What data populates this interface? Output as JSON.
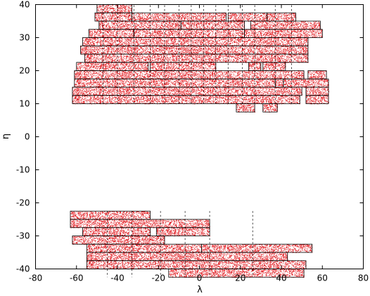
{
  "chart_data": {
    "type": "scatter",
    "title": "",
    "xlabel": "λ",
    "ylabel": "η",
    "xlim": [
      -80,
      80
    ],
    "ylim": [
      -40,
      40
    ],
    "xticks": [
      -80,
      -60,
      -40,
      -20,
      0,
      20,
      40,
      60,
      80
    ],
    "yticks": [
      -40,
      -30,
      -20,
      -10,
      0,
      10,
      20,
      30,
      40
    ],
    "grid": false,
    "point_color": "#e0141a",
    "density_note": "dense random point fill inside each stripe rectangle",
    "stripes": [
      {
        "x": [
          -50,
          -33
        ],
        "y": [
          37.5,
          40
        ]
      },
      {
        "x": [
          -51,
          -33
        ],
        "y": [
          35,
          37.5
        ]
      },
      {
        "x": [
          -33,
          13
        ],
        "y": [
          35,
          37.5
        ]
      },
      {
        "x": [
          14,
          33
        ],
        "y": [
          35,
          37.5
        ]
      },
      {
        "x": [
          33,
          47
        ],
        "y": [
          35,
          37.5
        ]
      },
      {
        "x": [
          -49,
          -9
        ],
        "y": [
          32.5,
          35
        ]
      },
      {
        "x": [
          -9,
          22
        ],
        "y": [
          32.5,
          35
        ]
      },
      {
        "x": [
          25,
          59
        ],
        "y": [
          32.5,
          35
        ]
      },
      {
        "x": [
          -54,
          -32
        ],
        "y": [
          30,
          32.5
        ]
      },
      {
        "x": [
          -32,
          22
        ],
        "y": [
          30,
          32.5
        ]
      },
      {
        "x": [
          22,
          60
        ],
        "y": [
          30,
          32.5
        ]
      },
      {
        "x": [
          -57,
          53
        ],
        "y": [
          27.5,
          30
        ]
      },
      {
        "x": [
          -58,
          53
        ],
        "y": [
          25,
          27.5
        ]
      },
      {
        "x": [
          -56,
          53
        ],
        "y": [
          22.5,
          25
        ]
      },
      {
        "x": [
          -60,
          -25
        ],
        "y": [
          20,
          22.5
        ]
      },
      {
        "x": [
          -24,
          8
        ],
        "y": [
          20,
          22.5
        ]
      },
      {
        "x": [
          24,
          30
        ],
        "y": [
          20,
          22.5
        ]
      },
      {
        "x": [
          31,
          42
        ],
        "y": [
          20,
          22.5
        ]
      },
      {
        "x": [
          -61,
          51
        ],
        "y": [
          17.5,
          20
        ]
      },
      {
        "x": [
          53,
          62
        ],
        "y": [
          17.5,
          20
        ]
      },
      {
        "x": [
          -61,
          37
        ],
        "y": [
          15,
          17.5
        ]
      },
      {
        "x": [
          37,
          41
        ],
        "y": [
          15,
          17.5
        ]
      },
      {
        "x": [
          41,
          63
        ],
        "y": [
          15,
          17.5
        ]
      },
      {
        "x": [
          -62,
          50
        ],
        "y": [
          12.5,
          15
        ]
      },
      {
        "x": [
          52,
          63
        ],
        "y": [
          12.5,
          15
        ]
      },
      {
        "x": [
          -62,
          49
        ],
        "y": [
          10,
          12.5
        ]
      },
      {
        "x": [
          52,
          63
        ],
        "y": [
          10,
          12.5
        ]
      },
      {
        "x": [
          18,
          27
        ],
        "y": [
          7.5,
          10
        ]
      },
      {
        "x": [
          31,
          38
        ],
        "y": [
          7.5,
          10
        ]
      },
      {
        "x": [
          -63,
          -24
        ],
        "y": [
          -25,
          -22.5
        ]
      },
      {
        "x": [
          -63,
          5
        ],
        "y": [
          -27.5,
          -25
        ]
      },
      {
        "x": [
          -57,
          -24
        ],
        "y": [
          -30,
          -27.5
        ]
      },
      {
        "x": [
          -21,
          5
        ],
        "y": [
          -30,
          -27.5
        ]
      },
      {
        "x": [
          -62,
          -17
        ],
        "y": [
          -32.5,
          -30
        ]
      },
      {
        "x": [
          -55,
          1
        ],
        "y": [
          -35,
          -32.5
        ]
      },
      {
        "x": [
          1,
          55
        ],
        "y": [
          -35,
          -32.5
        ]
      },
      {
        "x": [
          -55,
          43
        ],
        "y": [
          -37.5,
          -35
        ]
      },
      {
        "x": [
          -55,
          52
        ],
        "y": [
          -40,
          -37.5
        ]
      },
      {
        "x": [
          -15,
          51
        ],
        "y": [
          -42.5,
          -40
        ]
      }
    ],
    "dashed_lines": [
      {
        "x": -47,
        "y": [
          10,
          40
        ]
      },
      {
        "x": -40,
        "y": [
          10,
          40
        ]
      },
      {
        "x": -32,
        "y": [
          10,
          40
        ]
      },
      {
        "x": -24,
        "y": [
          10,
          40
        ]
      },
      {
        "x": -17,
        "y": [
          10,
          40
        ]
      },
      {
        "x": -10,
        "y": [
          10,
          40
        ]
      },
      {
        "x": -4,
        "y": [
          10,
          40
        ]
      },
      {
        "x": 2,
        "y": [
          10,
          40
        ]
      },
      {
        "x": 8,
        "y": [
          10,
          40
        ]
      },
      {
        "x": 14,
        "y": [
          10,
          40
        ]
      },
      {
        "x": 21,
        "y": [
          10,
          40
        ]
      },
      {
        "x": 27,
        "y": [
          10,
          40
        ]
      },
      {
        "x": 37,
        "y": [
          10,
          40
        ]
      },
      {
        "x": 45,
        "y": [
          10,
          40
        ]
      },
      {
        "x": -45,
        "y": [
          -22.5,
          -42.5
        ]
      },
      {
        "x": -33,
        "y": [
          -22.5,
          -42.5
        ]
      },
      {
        "x": -19,
        "y": [
          -22.5,
          -42.5
        ]
      },
      {
        "x": -7,
        "y": [
          -22.5,
          -42.5
        ]
      },
      {
        "x": 5,
        "y": [
          -22.5,
          -42.5
        ]
      },
      {
        "x": 26,
        "y": [
          -22.5,
          -42.5
        ]
      }
    ]
  }
}
